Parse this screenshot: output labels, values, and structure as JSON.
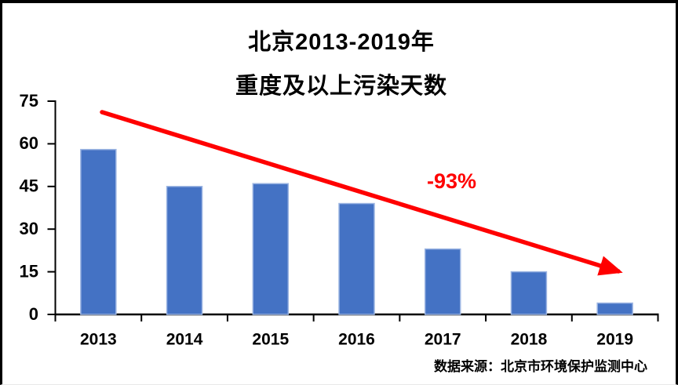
{
  "title": {
    "line1": "北京2013-2019年",
    "line2": "重度及以上污染天数"
  },
  "chart_data": {
    "type": "bar",
    "title": "北京2013-2019年重度及以上污染天数",
    "categories": [
      "2013",
      "2014",
      "2015",
      "2016",
      "2017",
      "2018",
      "2019"
    ],
    "values": [
      58,
      45,
      46,
      39,
      23,
      15,
      4
    ],
    "xlabel": "",
    "ylabel": "",
    "ylim": [
      0,
      75
    ],
    "yticks": [
      0,
      15,
      30,
      45,
      60,
      75
    ],
    "grid": false,
    "legend": "none",
    "annotation": {
      "text": "-93%",
      "color": "#ff0000"
    },
    "trend_arrow": {
      "present": true,
      "color": "#ff0000",
      "direction": "down-right"
    }
  },
  "source": {
    "text": "数据来源：北京市环境保护监测中心"
  },
  "colors": {
    "bar_fill": "#4472c4",
    "bar_edge": "#9cb5e2",
    "arrow": "#ff0000",
    "axis": "#000000",
    "tick_text": "#000000"
  }
}
